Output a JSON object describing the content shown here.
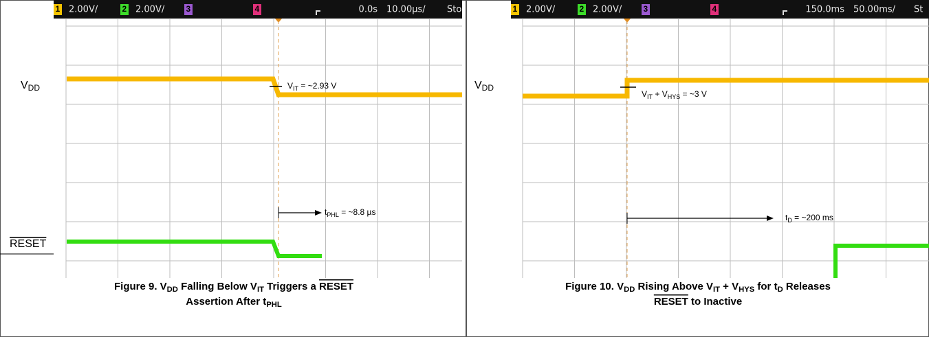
{
  "figures": [
    {
      "header": {
        "ch1": "1",
        "ch1_scale": "2.00V/",
        "ch2": "2",
        "ch2_scale": "2.00V/",
        "ch3": "3",
        "ch4": "4",
        "delay": "0.0s",
        "timebase": "10.00µs/",
        "status": "Sto"
      },
      "vdd_label": [
        {
          "t": "V"
        },
        {
          "sub": "DD"
        }
      ],
      "reset_label": [
        {
          "over": "RESET"
        }
      ],
      "threshold": [
        {
          "t": "V"
        },
        {
          "sub": "IT"
        },
        {
          "t": " = ~2.93 V"
        }
      ],
      "delay_note": [
        {
          "t": "t"
        },
        {
          "sub": "PHL"
        },
        {
          "t": " = ~8.8 µs"
        }
      ],
      "caption": [
        [
          {
            "t": "Figure 9. V"
          },
          {
            "sub": "DD"
          },
          {
            "t": " Falling Below V"
          },
          {
            "sub": "IT"
          },
          {
            "t": " Triggers a "
          },
          {
            "over": "RESET"
          }
        ],
        [
          {
            "t": "Assertion After t"
          },
          {
            "sub": "PHL"
          }
        ]
      ]
    },
    {
      "header": {
        "ch1": "1",
        "ch1_scale": "2.00V/",
        "ch2": "2",
        "ch2_scale": "2.00V/",
        "ch3": "3",
        "ch4": "4",
        "delay": "150.0ms",
        "timebase": "50.00ms/",
        "status": "St"
      },
      "vdd_label": [
        {
          "t": "V"
        },
        {
          "sub": "DD"
        }
      ],
      "threshold": [
        {
          "t": "V"
        },
        {
          "sub": "IT"
        },
        {
          "t": " + V"
        },
        {
          "sub": "HYS"
        },
        {
          "t": " = ~3 V"
        }
      ],
      "delay_note": [
        {
          "t": "t"
        },
        {
          "sub": "D"
        },
        {
          "t": " = ~200 ms"
        }
      ],
      "caption": [
        [
          {
            "t": "Figure 10. V"
          },
          {
            "sub": "DD"
          },
          {
            "t": " Rising Above V"
          },
          {
            "sub": "IT"
          },
          {
            "t": " + V"
          },
          {
            "sub": "HYS"
          },
          {
            "t": " for t"
          },
          {
            "sub": "D"
          },
          {
            "t": " Releases"
          }
        ],
        [
          {
            "over": "RESET"
          },
          {
            "t": " to Inactive"
          }
        ]
      ]
    }
  ]
}
